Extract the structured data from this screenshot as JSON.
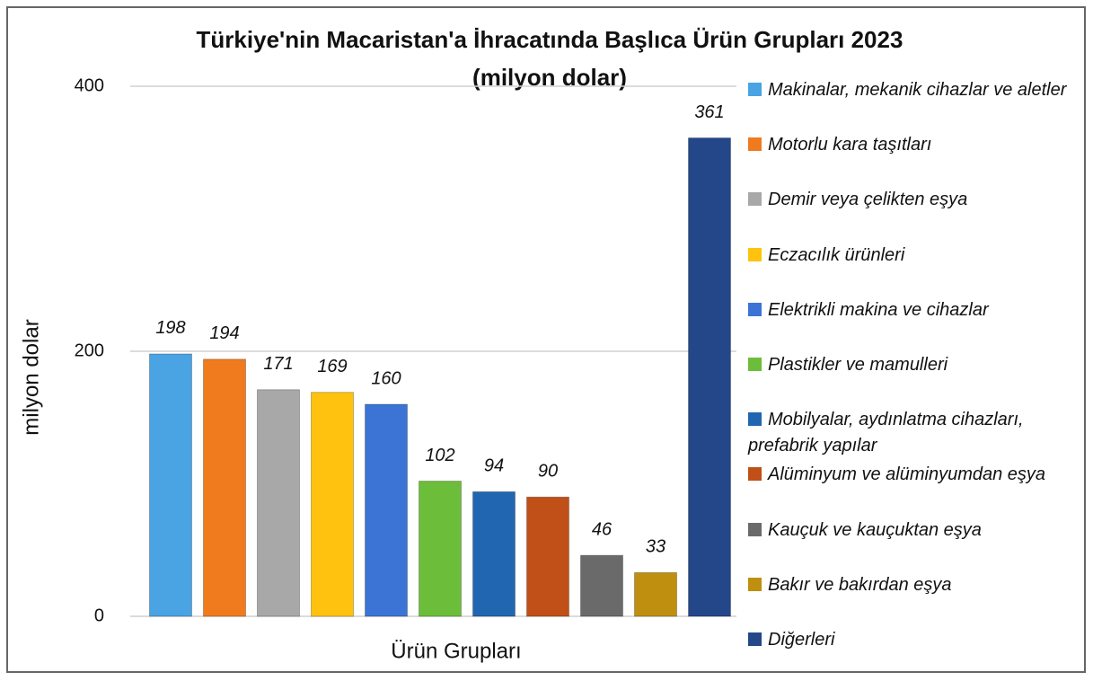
{
  "chart_data": {
    "type": "bar",
    "title": "Türkiye'nin Macaristan'a İhracatında Başlıca Ürün Grupları 2023",
    "subtitle": "(milyon dolar)",
    "x_label": "Ürün Grupları",
    "y_label": "milyon dolar",
    "categories": [
      "Makinalar, mekanik cihazlar ve aletler",
      "Motorlu kara taşıtları",
      "Demir veya çelikten eşya",
      "Eczacılık ürünleri",
      "Elektrikli makina ve cihazlar",
      "Plastikler ve mamulleri",
      "Mobilyalar, aydınlatma cihazları, prefabrik yapılar",
      "Alüminyum ve alüminyumdan eşya",
      "Kauçuk ve kauçuktan eşya",
      "Bakır ve bakırdan eşya",
      "Diğerleri"
    ],
    "values": [
      198,
      194,
      171,
      169,
      160,
      102,
      94,
      90,
      46,
      33,
      361
    ],
    "colors": [
      "#4aa3e3",
      "#f07a1e",
      "#a8a8a8",
      "#ffc20e",
      "#3b74d4",
      "#6cbd3a",
      "#2166b0",
      "#c04f18",
      "#6a6a6a",
      "#bf8f10",
      "#24478a"
    ],
    "ylim": [
      0,
      400
    ],
    "yticks": [
      0,
      200,
      400
    ],
    "grid": true,
    "legend": "right"
  }
}
